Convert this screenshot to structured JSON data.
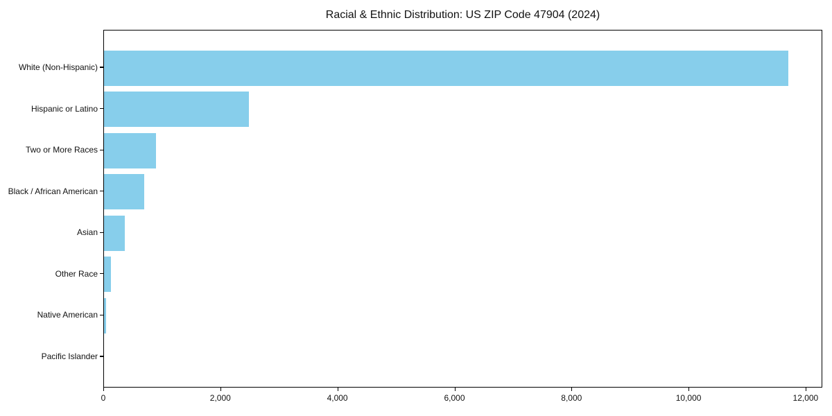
{
  "chart_data": {
    "type": "bar",
    "orientation": "horizontal",
    "title": "Racial & Ethnic Distribution: US ZIP Code 47904 (2024)",
    "categories": [
      "White (Non-Hispanic)",
      "Hispanic or Latino",
      "Two or More Races",
      "Black / African American",
      "Asian",
      "Other Race",
      "Native American",
      "Pacific Islander"
    ],
    "values": [
      11690,
      2480,
      890,
      690,
      355,
      115,
      40,
      0
    ],
    "xlabel": "",
    "ylabel": "",
    "xlim": [
      0,
      12285
    ],
    "x_ticks": [
      {
        "value": 0,
        "label": "0"
      },
      {
        "value": 2000,
        "label": "2,000"
      },
      {
        "value": 4000,
        "label": "4,000"
      },
      {
        "value": 6000,
        "label": "6,000"
      },
      {
        "value": 8000,
        "label": "8,000"
      },
      {
        "value": 10000,
        "label": "10,000"
      },
      {
        "value": 12000,
        "label": "12,000"
      }
    ],
    "bar_color": "#87CEEB",
    "axis_color": "#000000",
    "text_color": "#111111",
    "background": "#FFFFFF",
    "grid": false,
    "legend": false
  }
}
